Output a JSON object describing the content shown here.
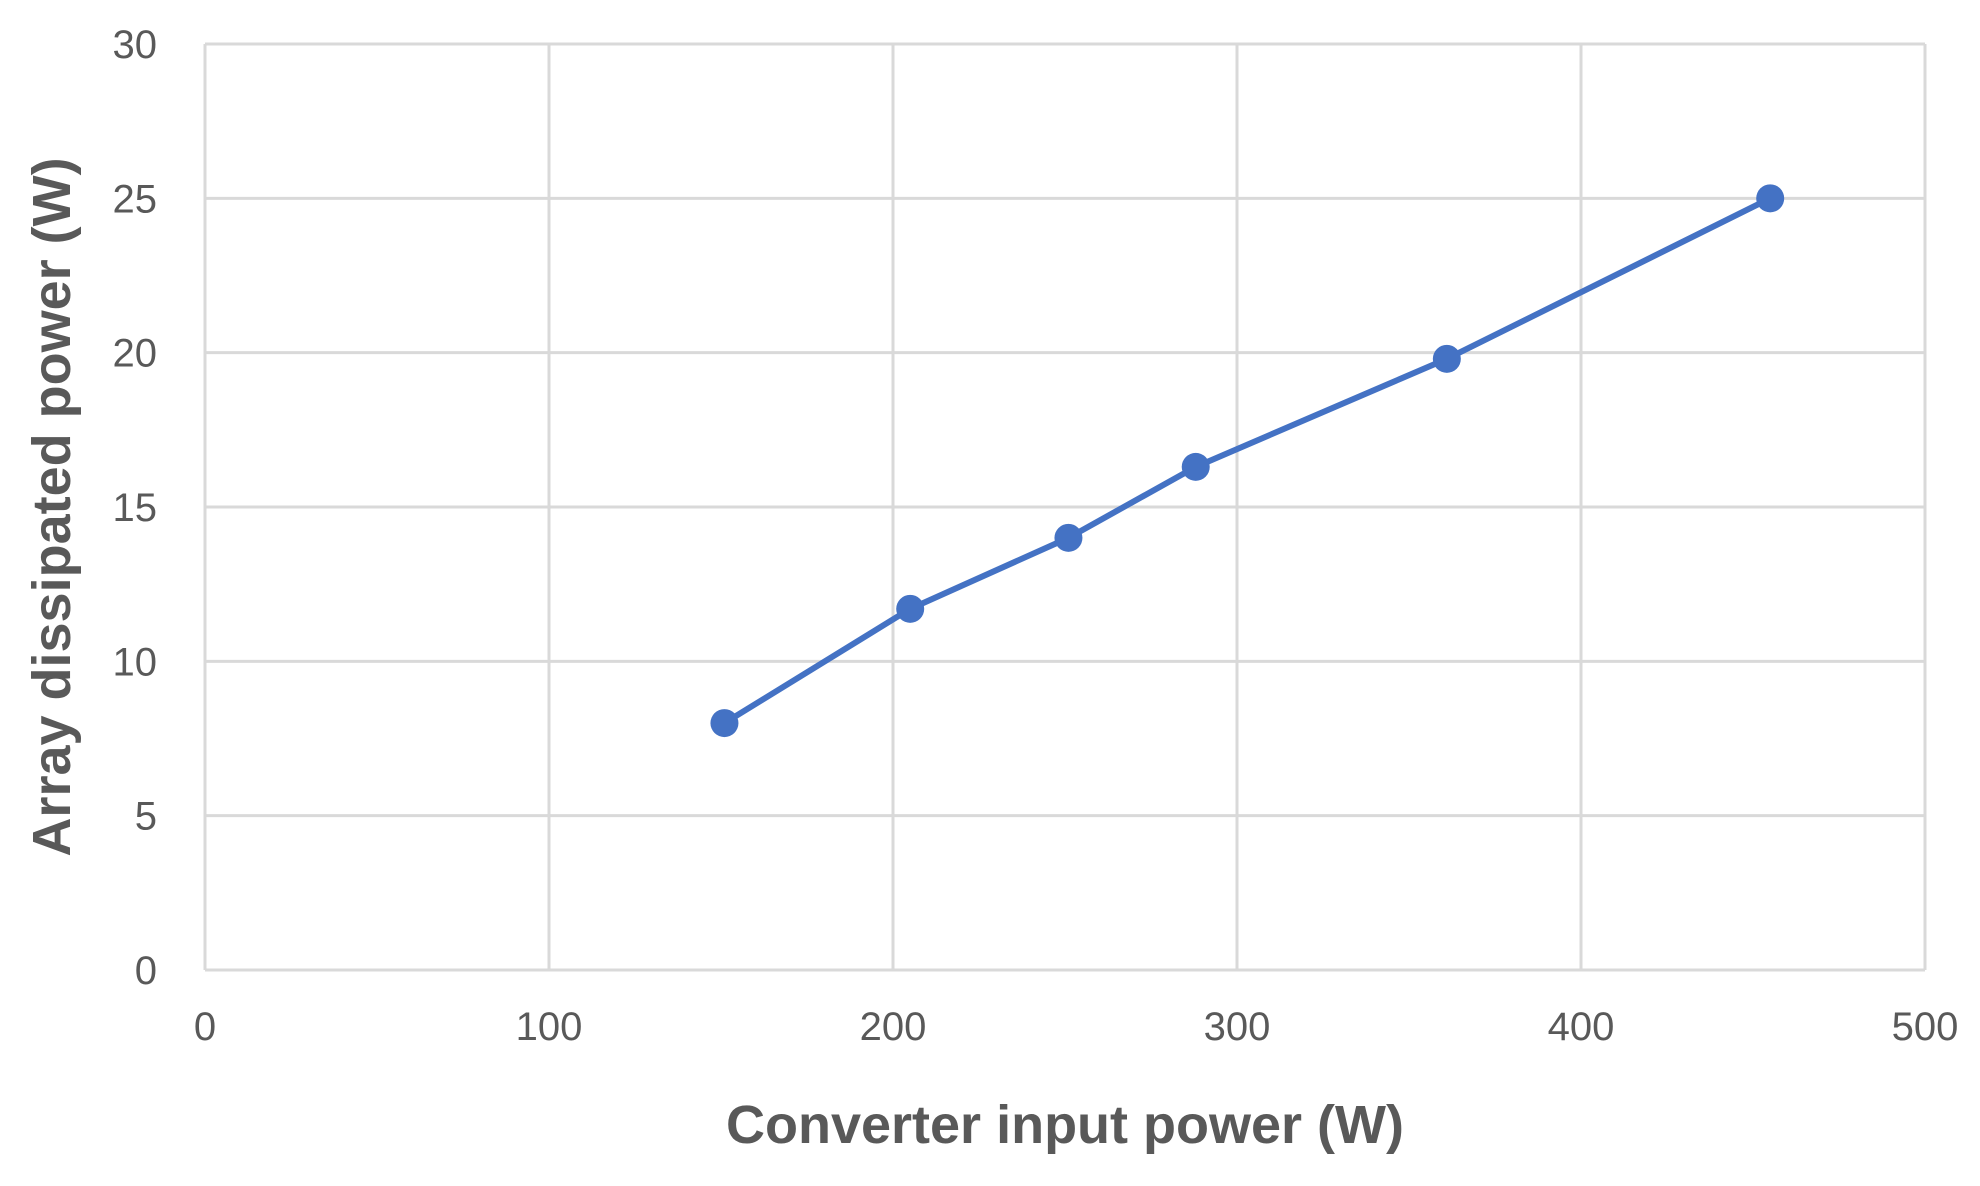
{
  "chart_data": {
    "type": "line",
    "title": "",
    "xlabel": "Converter input power (W)",
    "ylabel": "Array dissipated power (W)",
    "xlim": [
      0,
      500
    ],
    "ylim": [
      0,
      30
    ],
    "xticks": [
      0,
      100,
      200,
      300,
      400,
      500
    ],
    "yticks": [
      0,
      5,
      10,
      15,
      20,
      25,
      30
    ],
    "xtick_labels": [
      "0",
      "100",
      "200",
      "300",
      "400",
      "500"
    ],
    "ytick_labels": [
      "0",
      "5",
      "10",
      "15",
      "20",
      "25",
      "30"
    ],
    "grid": true,
    "legend": "none",
    "series": [
      {
        "x": [
          151,
          205,
          251,
          288,
          361,
          455
        ],
        "y": [
          8.0,
          11.7,
          14.0,
          16.3,
          19.8,
          25.0
        ]
      }
    ],
    "colors": {
      "series": "#4472C4",
      "grid": "#d9d9d9",
      "axis": "#d9d9d9",
      "text": "#595959"
    }
  }
}
